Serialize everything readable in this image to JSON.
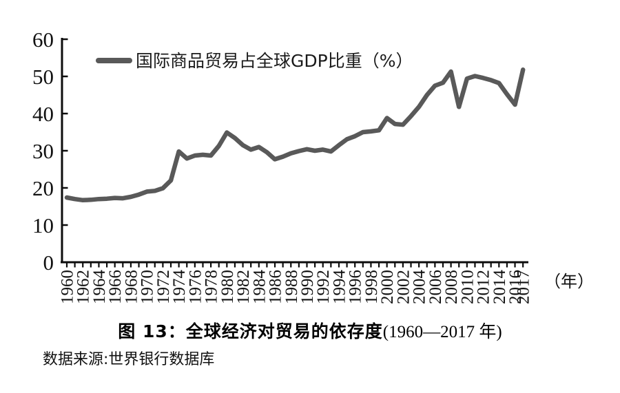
{
  "chart_data": {
    "type": "line",
    "title": "图 13：全球经济对贸易的依存度(1960—2017 年)",
    "x": [
      1960,
      1961,
      1962,
      1963,
      1964,
      1965,
      1966,
      1967,
      1968,
      1969,
      1970,
      1971,
      1972,
      1973,
      1974,
      1975,
      1976,
      1977,
      1978,
      1979,
      1980,
      1981,
      1982,
      1983,
      1984,
      1985,
      1986,
      1987,
      1988,
      1989,
      1990,
      1991,
      1992,
      1993,
      1994,
      1995,
      1996,
      1997,
      1998,
      1999,
      2000,
      2001,
      2002,
      2003,
      2004,
      2005,
      2006,
      2007,
      2008,
      2009,
      2010,
      2011,
      2012,
      2013,
      2014,
      2015,
      2016,
      2017
    ],
    "series": [
      {
        "name": "国际商品贸易占全球GDP比重（%）",
        "values": [
          17.4,
          17.0,
          16.7,
          16.8,
          17.0,
          17.1,
          17.3,
          17.2,
          17.6,
          18.2,
          19.0,
          19.2,
          19.9,
          22.0,
          29.8,
          27.9,
          28.7,
          28.9,
          28.7,
          31.3,
          34.9,
          33.4,
          31.5,
          30.3,
          31.0,
          29.6,
          27.7,
          28.4,
          29.3,
          29.9,
          30.4,
          30.0,
          30.3,
          29.8,
          31.5,
          33.1,
          33.9,
          35.0,
          35.2,
          35.5,
          38.8,
          37.2,
          37.0,
          39.3,
          41.8,
          45.0,
          47.5,
          48.3,
          51.3,
          41.8,
          49.4,
          50.1,
          49.6,
          49.0,
          48.2,
          45.2,
          42.4,
          51.8
        ]
      }
    ],
    "ylim": [
      0,
      60
    ],
    "y_ticks": [
      0,
      10,
      20,
      30,
      40,
      50,
      60
    ],
    "x_tick_labels": [
      "1960",
      "1962",
      "1964",
      "1966",
      "1968",
      "1970",
      "1972",
      "1974",
      "1976",
      "1978",
      "1980",
      "1982",
      "1984",
      "1986",
      "1988",
      "1990",
      "1992",
      "1994",
      "1996",
      "1998",
      "2000",
      "2002",
      "2004",
      "2006",
      "2008",
      "2010",
      "2012",
      "2014",
      "2016",
      "2017"
    ],
    "x_axis_unit": "（年）",
    "legend_position": "top-left",
    "grid": false,
    "line_color": "#595959",
    "axis_color": "#0d0d0d"
  },
  "legend": {
    "label": "国际商品贸易占全球GDP比重（%）"
  },
  "x_axis": {
    "unit_label": "（年）"
  },
  "caption": {
    "bold_part": "图 13：全球经济对贸易的依存度",
    "range_part": "(1960—2017 年)"
  },
  "source": {
    "text": "数据来源:世界银行数据库"
  }
}
